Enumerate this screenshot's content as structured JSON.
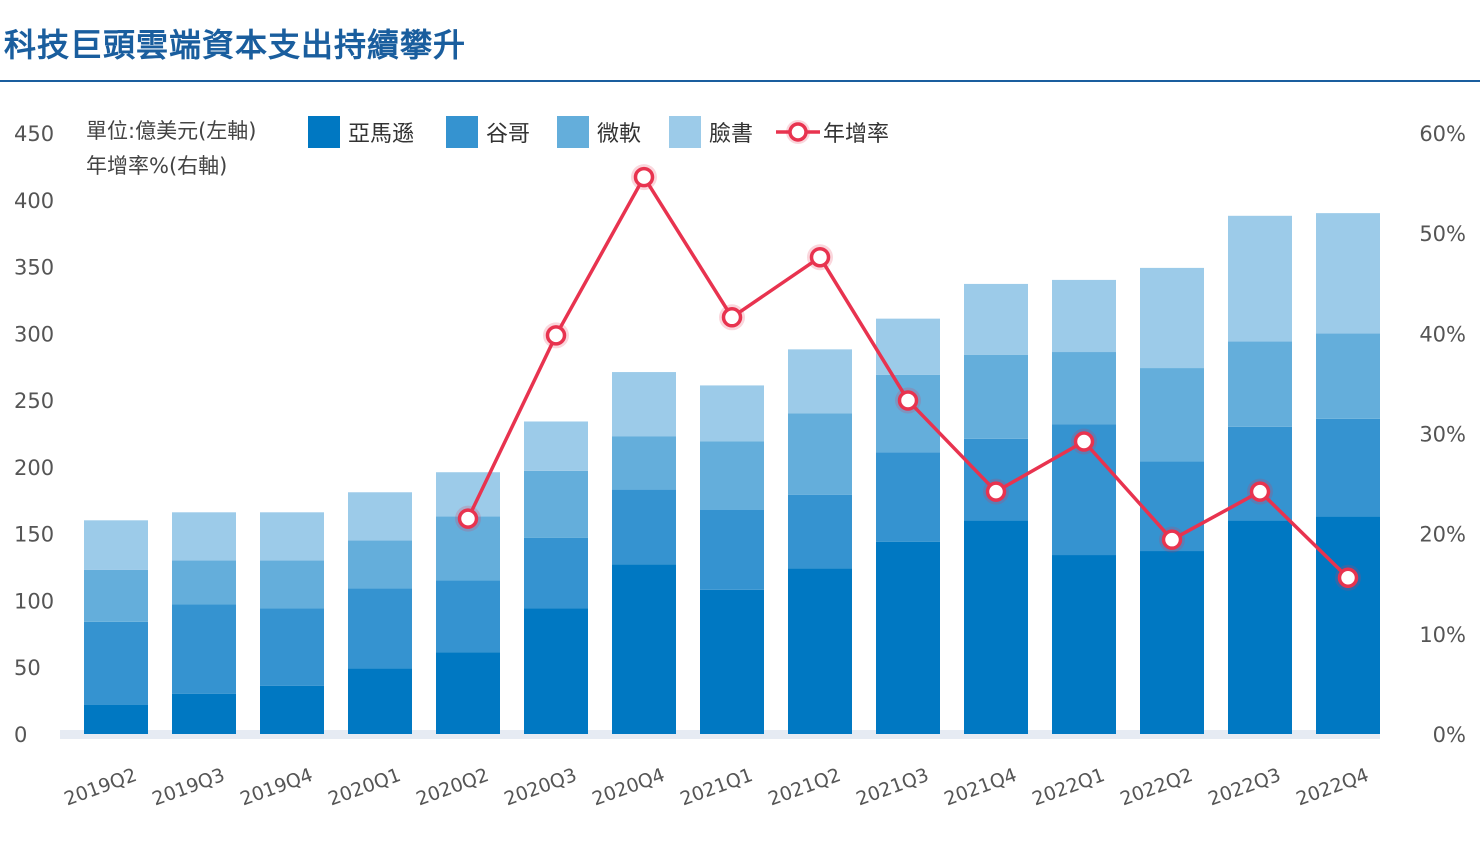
{
  "title": "科技巨頭雲端資本支出持續攀升",
  "chart_data": {
    "type": "bar",
    "stacked": true,
    "categories": [
      "2019Q2",
      "2019Q3",
      "2019Q4",
      "2020Q1",
      "2020Q2",
      "2020Q3",
      "2020Q4",
      "2021Q1",
      "2021Q2",
      "2021Q3",
      "2021Q4",
      "2022Q1",
      "2022Q2",
      "2022Q3",
      "2022Q4"
    ],
    "unit_note": [
      "單位:億美元(左軸)",
      "年增率%(右軸)"
    ],
    "y_left": {
      "lim": [
        0,
        450
      ],
      "ticks": [
        "0",
        "50",
        "100",
        "150",
        "200",
        "250",
        "300",
        "350",
        "400",
        "450"
      ]
    },
    "y_right": {
      "lim": [
        0,
        60
      ],
      "ticks": [
        "0%",
        "10%",
        "20%",
        "30%",
        "40%",
        "50%",
        "60%"
      ]
    },
    "series": [
      {
        "name": "亞馬遜",
        "color": "#0078c2",
        "values": [
          22,
          30,
          36,
          49,
          61,
          94,
          127,
          108,
          124,
          144,
          160,
          134,
          137,
          160,
          163
        ]
      },
      {
        "name": "谷哥",
        "color": "#3593d0",
        "values": [
          62,
          67,
          58,
          60,
          54,
          53,
          56,
          60,
          55,
          67,
          61,
          98,
          67,
          70,
          73
        ]
      },
      {
        "name": "微軟",
        "color": "#64aedb",
        "values": [
          39,
          33,
          36,
          36,
          48,
          50,
          40,
          51,
          61,
          58,
          63,
          54,
          70,
          64,
          64
        ]
      },
      {
        "name": "臉書",
        "color": "#9ccbe9",
        "values": [
          37,
          36,
          36,
          36,
          33,
          37,
          48,
          42,
          48,
          42,
          53,
          54,
          75,
          94,
          90
        ]
      }
    ],
    "line": {
      "name": "年增率",
      "color": "#e8334f",
      "axis": "right",
      "values": [
        null,
        null,
        null,
        null,
        21.5,
        39.8,
        55.6,
        41.6,
        47.6,
        33.3,
        24.2,
        29.2,
        19.4,
        24.2,
        15.6
      ]
    },
    "legend_position": "top",
    "grid": false
  }
}
